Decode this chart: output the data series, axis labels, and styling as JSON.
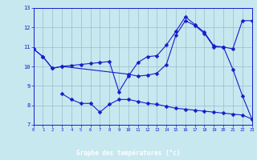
{
  "xlabel": "Graphe des températures (°c)",
  "bg_color": "#c8e8f0",
  "line_color": "#1a1acc",
  "grid_color": "#99bbcc",
  "xlabel_bg": "#2222aa",
  "xlabel_fg": "#ffffff",
  "xlim": [
    0,
    23
  ],
  "ylim": [
    7,
    13
  ],
  "yticks": [
    7,
    8,
    9,
    10,
    11,
    12,
    13
  ],
  "xticks": [
    0,
    1,
    2,
    3,
    4,
    5,
    6,
    7,
    8,
    9,
    10,
    11,
    12,
    13,
    14,
    15,
    16,
    17,
    18,
    19,
    20,
    21,
    22,
    23
  ],
  "line1_x": [
    0,
    1,
    2,
    3,
    4,
    5,
    6,
    7,
    8,
    9,
    10,
    11,
    12,
    13,
    14,
    15,
    16,
    17,
    18,
    19,
    20,
    21,
    22,
    23
  ],
  "line1_y": [
    10.9,
    10.5,
    9.9,
    10.0,
    10.05,
    10.1,
    10.15,
    10.2,
    10.25,
    8.7,
    9.5,
    10.2,
    10.5,
    10.55,
    11.1,
    11.8,
    12.55,
    12.15,
    11.75,
    11.05,
    11.0,
    9.85,
    8.5,
    7.3
  ],
  "line2_x": [
    0,
    1,
    2,
    3,
    10,
    11,
    12,
    13,
    14,
    15,
    16,
    17,
    18,
    19,
    20,
    21,
    22,
    23
  ],
  "line2_y": [
    10.9,
    10.5,
    9.9,
    10.0,
    9.6,
    9.5,
    9.55,
    9.65,
    10.1,
    11.6,
    12.35,
    12.1,
    11.7,
    11.0,
    11.0,
    10.9,
    12.35,
    12.35
  ],
  "line3_x": [
    3,
    4,
    5,
    6,
    7,
    8,
    9,
    10,
    11,
    12,
    13,
    14,
    15,
    16,
    17,
    18,
    19,
    20,
    21,
    22,
    23
  ],
  "line3_y": [
    8.6,
    8.3,
    8.1,
    8.1,
    7.65,
    8.05,
    8.3,
    8.3,
    8.2,
    8.1,
    8.05,
    7.95,
    7.85,
    7.8,
    7.75,
    7.7,
    7.65,
    7.6,
    7.55,
    7.5,
    7.3
  ]
}
